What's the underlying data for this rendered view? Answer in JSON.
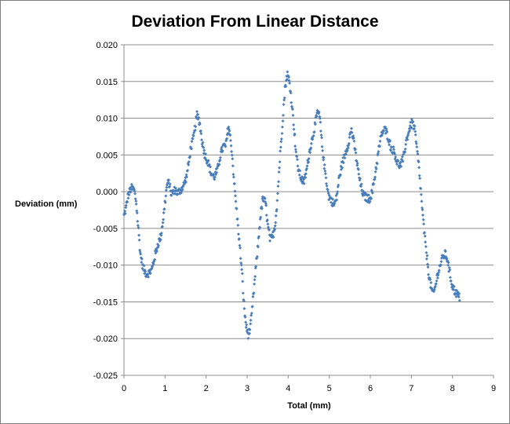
{
  "chart_data": {
    "type": "scatter",
    "title": "Deviation From Linear Distance",
    "xlabel": "Total (mm)",
    "ylabel": "Deviation (mm)",
    "xlim": [
      0,
      9
    ],
    "ylim": [
      -0.025,
      0.02
    ],
    "x_ticks": [
      0,
      1,
      2,
      3,
      4,
      5,
      6,
      7,
      8,
      9
    ],
    "y_ticks": [
      0.02,
      0.015,
      0.01,
      0.005,
      0.0,
      -0.005,
      -0.01,
      -0.015,
      -0.02,
      -0.025
    ],
    "x_tick_labels": [
      "0",
      "1",
      "2",
      "3",
      "4",
      "5",
      "6",
      "7",
      "8",
      "9"
    ],
    "y_tick_labels": [
      "0.020",
      "0.015",
      "0.010",
      "0.005",
      "0.000",
      "-0.005",
      "-0.010",
      "-0.015",
      "-0.020",
      "-0.025"
    ],
    "grid": "horizontal",
    "legend": "none",
    "marker_color": "#4a7ebb",
    "profile": [
      [
        0.0,
        -0.0033
      ],
      [
        0.05,
        -0.0022
      ],
      [
        0.1,
        -0.0005
      ],
      [
        0.18,
        0.0005
      ],
      [
        0.25,
        0.0002
      ],
      [
        0.3,
        -0.0015
      ],
      [
        0.35,
        -0.005
      ],
      [
        0.4,
        -0.0085
      ],
      [
        0.45,
        -0.01
      ],
      [
        0.5,
        -0.0108
      ],
      [
        0.55,
        -0.0112
      ],
      [
        0.62,
        -0.011
      ],
      [
        0.68,
        -0.0106
      ],
      [
        0.75,
        -0.0088
      ],
      [
        0.82,
        -0.0073
      ],
      [
        0.9,
        -0.006
      ],
      [
        0.97,
        -0.003
      ],
      [
        1.05,
        0.001
      ],
      [
        1.1,
        0.0012
      ],
      [
        1.15,
        -0.0003
      ],
      [
        1.25,
        0.0003
      ],
      [
        1.3,
        -0.0002
      ],
      [
        1.38,
        0.0002
      ],
      [
        1.45,
        0.0008
      ],
      [
        1.52,
        0.002
      ],
      [
        1.58,
        0.004
      ],
      [
        1.63,
        0.006
      ],
      [
        1.7,
        0.0075
      ],
      [
        1.78,
        0.0105
      ],
      [
        1.84,
        0.0095
      ],
      [
        1.9,
        0.007
      ],
      [
        1.97,
        0.005
      ],
      [
        2.05,
        0.004
      ],
      [
        2.12,
        0.0025
      ],
      [
        2.2,
        0.002
      ],
      [
        2.28,
        0.003
      ],
      [
        2.35,
        0.005
      ],
      [
        2.42,
        0.0062
      ],
      [
        2.48,
        0.0062
      ],
      [
        2.55,
        0.009
      ],
      [
        2.62,
        0.006
      ],
      [
        2.68,
        0.0015
      ],
      [
        2.75,
        -0.003
      ],
      [
        2.82,
        -0.0075
      ],
      [
        2.88,
        -0.0115
      ],
      [
        2.93,
        -0.016
      ],
      [
        2.98,
        -0.0185
      ],
      [
        3.03,
        -0.0195
      ],
      [
        3.08,
        -0.0185
      ],
      [
        3.13,
        -0.0155
      ],
      [
        3.2,
        -0.011
      ],
      [
        3.27,
        -0.007
      ],
      [
        3.32,
        -0.0035
      ],
      [
        3.38,
        -0.001
      ],
      [
        3.45,
        -0.0015
      ],
      [
        3.5,
        -0.0045
      ],
      [
        3.56,
        -0.0065
      ],
      [
        3.62,
        -0.0062
      ],
      [
        3.68,
        -0.0045
      ],
      [
        3.73,
        -0.0015
      ],
      [
        3.78,
        0.003
      ],
      [
        3.83,
        0.007
      ],
      [
        3.88,
        0.011
      ],
      [
        3.93,
        0.0145
      ],
      [
        3.98,
        0.016
      ],
      [
        4.03,
        0.015
      ],
      [
        4.08,
        0.0125
      ],
      [
        4.13,
        0.0095
      ],
      [
        4.18,
        0.006
      ],
      [
        4.23,
        0.0035
      ],
      [
        4.3,
        0.002
      ],
      [
        4.38,
        0.0012
      ],
      [
        4.45,
        0.003
      ],
      [
        4.52,
        0.0055
      ],
      [
        4.58,
        0.007
      ],
      [
        4.65,
        0.009
      ],
      [
        4.72,
        0.011
      ],
      [
        4.77,
        0.01
      ],
      [
        4.82,
        0.0065
      ],
      [
        4.88,
        0.0035
      ],
      [
        4.93,
        0.0015
      ],
      [
        4.98,
        -0.0005
      ],
      [
        5.05,
        -0.0012
      ],
      [
        5.12,
        -0.0018
      ],
      [
        5.18,
        -0.0008
      ],
      [
        5.23,
        0.0015
      ],
      [
        5.3,
        0.0035
      ],
      [
        5.38,
        0.005
      ],
      [
        5.46,
        0.0065
      ],
      [
        5.54,
        0.0085
      ],
      [
        5.62,
        0.006
      ],
      [
        5.7,
        0.003
      ],
      [
        5.76,
        0.001
      ],
      [
        5.83,
        -0.0005
      ],
      [
        5.9,
        -0.0008
      ],
      [
        5.98,
        -0.001
      ],
      [
        6.05,
        0.0
      ],
      [
        6.12,
        0.0025
      ],
      [
        6.2,
        0.0055
      ],
      [
        6.28,
        0.008
      ],
      [
        6.36,
        0.0085
      ],
      [
        6.43,
        0.0075
      ],
      [
        6.5,
        0.006
      ],
      [
        6.58,
        0.0055
      ],
      [
        6.65,
        0.004
      ],
      [
        6.73,
        0.0035
      ],
      [
        6.8,
        0.0045
      ],
      [
        6.88,
        0.007
      ],
      [
        6.95,
        0.0085
      ],
      [
        7.02,
        0.0095
      ],
      [
        7.08,
        0.0085
      ],
      [
        7.13,
        0.006
      ],
      [
        7.18,
        0.0035
      ],
      [
        7.23,
        0.0
      ],
      [
        7.28,
        -0.0035
      ],
      [
        7.33,
        -0.0065
      ],
      [
        7.38,
        -0.009
      ],
      [
        7.43,
        -0.0115
      ],
      [
        7.48,
        -0.013
      ],
      [
        7.53,
        -0.014
      ],
      [
        7.58,
        -0.013
      ],
      [
        7.63,
        -0.0115
      ],
      [
        7.7,
        -0.01
      ],
      [
        7.76,
        -0.009
      ],
      [
        7.82,
        -0.0085
      ],
      [
        7.88,
        -0.0092
      ],
      [
        7.93,
        -0.011
      ],
      [
        7.98,
        -0.0125
      ],
      [
        8.05,
        -0.0135
      ],
      [
        8.12,
        -0.014
      ],
      [
        8.18,
        -0.0145
      ]
    ]
  }
}
